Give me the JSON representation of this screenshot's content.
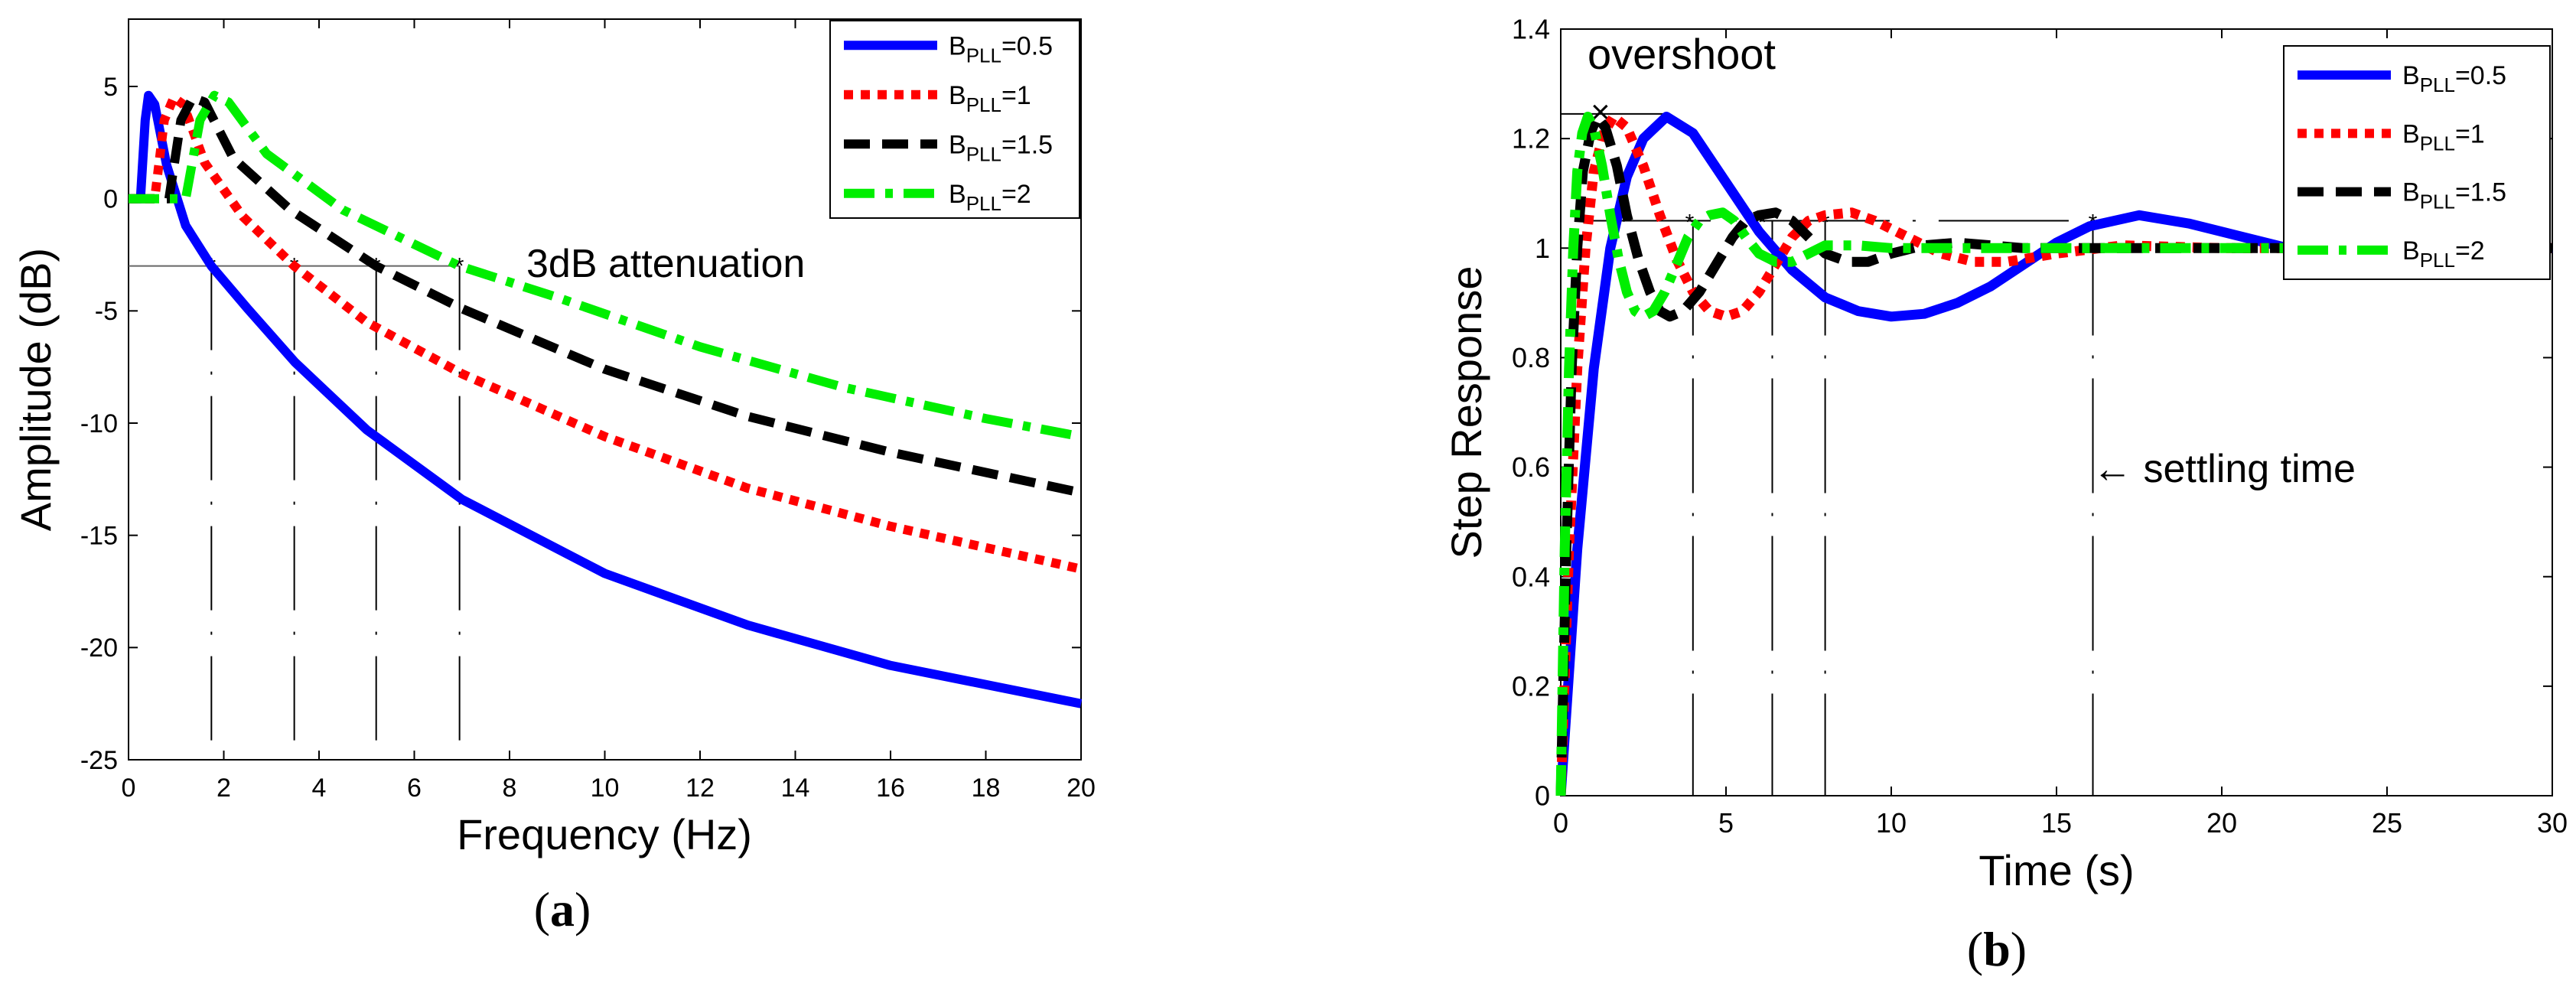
{
  "chart_data": [
    {
      "type": "line",
      "panel_label": "(a)",
      "panel_letter": "a",
      "xlabel": "Frequency (Hz)",
      "ylabel": "Amplitude (dB)",
      "xlim": [
        0,
        20
      ],
      "ylim": [
        -25,
        8
      ],
      "xticks": [
        0,
        2,
        4,
        6,
        8,
        10,
        12,
        14,
        16,
        18,
        20
      ],
      "yticks": [
        -25,
        -20,
        -15,
        -10,
        -5,
        0,
        5
      ],
      "grid": false,
      "legend_position": "top-right",
      "annotation": "3dB attenuation",
      "attenuation_level": -3,
      "series": [
        {
          "name": "B",
          "sub": "PLL",
          "suffix": "=0.5",
          "color": "#0000ff",
          "style": "solid",
          "x": [
            0,
            0.25,
            0.35,
            0.42,
            0.55,
            0.8,
            1.2,
            1.74,
            2.5,
            3.5,
            5,
            7,
            10,
            13,
            16,
            20
          ],
          "y": [
            0,
            0,
            3.5,
            4.6,
            4.2,
            1.5,
            -1.2,
            -3,
            -4.9,
            -7.3,
            -10.3,
            -13.4,
            -16.7,
            -19,
            -20.8,
            -22.5
          ]
        },
        {
          "name": "B",
          "sub": "PLL",
          "suffix": "=1",
          "color": "#ff0000",
          "style": "dotted",
          "x": [
            0,
            0.55,
            0.75,
            0.95,
            1.15,
            1.6,
            2.4,
            3.48,
            5,
            7,
            10,
            13,
            16,
            20
          ],
          "y": [
            0,
            0,
            3.5,
            4.5,
            4.2,
            1.6,
            -0.8,
            -3,
            -5.5,
            -7.8,
            -10.6,
            -12.9,
            -14.6,
            -16.5
          ]
        },
        {
          "name": "B",
          "sub": "PLL",
          "suffix": "=1.5",
          "color": "#000000",
          "style": "dashed",
          "x": [
            0,
            0.85,
            1.1,
            1.35,
            1.6,
            2.2,
            3.4,
            5.2,
            7,
            10,
            13,
            16,
            20
          ],
          "y": [
            0,
            0,
            3.5,
            4.5,
            4.3,
            1.8,
            -0.5,
            -3,
            -4.9,
            -7.6,
            -9.7,
            -11.3,
            -13.1
          ]
        },
        {
          "name": "B",
          "sub": "PLL",
          "suffix": "=2",
          "color": "#00ee00",
          "style": "dashdot",
          "x": [
            0,
            1.2,
            1.5,
            1.8,
            2.1,
            2.9,
            4.5,
            6.95,
            9,
            12,
            15,
            18,
            20
          ],
          "y": [
            0,
            0,
            3.5,
            4.6,
            4.3,
            2,
            -0.5,
            -3,
            -4.4,
            -6.6,
            -8.4,
            -9.8,
            -10.6
          ]
        }
      ],
      "cutoffs": [
        1.74,
        3.48,
        5.2,
        6.95
      ]
    },
    {
      "type": "line",
      "panel_label": "(b)",
      "panel_letter": "b",
      "xlabel": "Time (s)",
      "ylabel": "Step Response",
      "xlim": [
        0,
        30
      ],
      "ylim": [
        0,
        1.4
      ],
      "xticks": [
        0,
        5,
        10,
        15,
        20,
        25,
        30
      ],
      "yticks": [
        0,
        0.2,
        0.4,
        0.6,
        0.8,
        1,
        1.2,
        1.4
      ],
      "grid": false,
      "legend_position": "top-right",
      "annotation_overshoot": "overshoot",
      "annotation_settling": "← settling time",
      "overshoot_level": 1.245,
      "settling_band": 1.05,
      "series": [
        {
          "name": "B",
          "sub": "PLL",
          "suffix": "=0.5",
          "color": "#0000ff",
          "style": "solid",
          "x": [
            0,
            0.5,
            1,
            1.5,
            2,
            2.5,
            3.2,
            4,
            5,
            6,
            7,
            8,
            9,
            10,
            11,
            12,
            13,
            14,
            15,
            16,
            17.5,
            19,
            20,
            22,
            25,
            30
          ],
          "y": [
            0,
            0.45,
            0.78,
            1.0,
            1.13,
            1.2,
            1.24,
            1.21,
            1.12,
            1.03,
            0.96,
            0.91,
            0.885,
            0.875,
            0.88,
            0.9,
            0.93,
            0.97,
            1.01,
            1.04,
            1.06,
            1.045,
            1.03,
            1.0,
            0.99,
            1.0
          ]
        },
        {
          "name": "B",
          "sub": "PLL",
          "suffix": "=1",
          "color": "#ff0000",
          "style": "dotted",
          "x": [
            0,
            0.25,
            0.5,
            0.75,
            1,
            1.3,
            1.6,
            2,
            2.5,
            3,
            3.5,
            4,
            4.5,
            5,
            5.5,
            6,
            6.5,
            7,
            7.5,
            8,
            8.8,
            9.5,
            10.5,
            11.5,
            12.5,
            13.5,
            15,
            17,
            20,
            25,
            30
          ],
          "y": [
            0,
            0.45,
            0.78,
            1.0,
            1.14,
            1.21,
            1.24,
            1.22,
            1.15,
            1.06,
            0.98,
            0.92,
            0.885,
            0.875,
            0.885,
            0.92,
            0.97,
            1.02,
            1.05,
            1.06,
            1.065,
            1.05,
            1.02,
            0.99,
            0.975,
            0.975,
            0.99,
            1.005,
            1.0,
            1.0,
            1.0
          ]
        },
        {
          "name": "B",
          "sub": "PLL",
          "suffix": "=1.5",
          "color": "#000000",
          "style": "dashed",
          "x": [
            0,
            0.17,
            0.33,
            0.5,
            0.67,
            0.9,
            1.1,
            1.35,
            1.7,
            2,
            2.35,
            2.7,
            3,
            3.3,
            3.7,
            4.2,
            4.7,
            5.2,
            5.6,
            6,
            6.5,
            7,
            7.5,
            8,
            8.7,
            9.3,
            10,
            11,
            12,
            14,
            20,
            30
          ],
          "y": [
            0,
            0.45,
            0.78,
            1.0,
            1.14,
            1.21,
            1.24,
            1.22,
            1.15,
            1.06,
            0.98,
            0.92,
            0.885,
            0.875,
            0.885,
            0.92,
            0.97,
            1.02,
            1.05,
            1.06,
            1.065,
            1.05,
            1.02,
            0.99,
            0.975,
            0.975,
            0.99,
            1.005,
            1.01,
            1.0,
            1.0,
            1.0
          ]
        },
        {
          "name": "B",
          "sub": "PLL",
          "suffix": "=2",
          "color": "#00ee00",
          "style": "dashdot",
          "x": [
            0,
            0.12,
            0.25,
            0.38,
            0.5,
            0.65,
            0.82,
            1.0,
            1.25,
            1.5,
            1.75,
            2.0,
            2.25,
            2.5,
            2.8,
            3.15,
            3.5,
            3.85,
            4.2,
            4.5,
            4.9,
            5.25,
            5.6,
            6,
            6.5,
            7,
            7.5,
            8,
            9,
            10,
            12,
            15,
            30
          ],
          "y": [
            0,
            0.45,
            0.78,
            1.0,
            1.14,
            1.21,
            1.24,
            1.22,
            1.15,
            1.06,
            0.98,
            0.92,
            0.885,
            0.875,
            0.885,
            0.92,
            0.97,
            1.02,
            1.05,
            1.06,
            1.065,
            1.05,
            1.02,
            0.99,
            0.975,
            0.975,
            0.99,
            1.005,
            1.005,
            1.0,
            1.0,
            1.0,
            1.0
          ]
        }
      ],
      "overshoot_times": [
        0.6,
        1.1,
        1.6,
        3.2
      ],
      "band_crossings": [
        3.9,
        6.1,
        8.0,
        16.1
      ],
      "settling_times": [
        4.0,
        6.4,
        8.0,
        16.1
      ]
    }
  ]
}
